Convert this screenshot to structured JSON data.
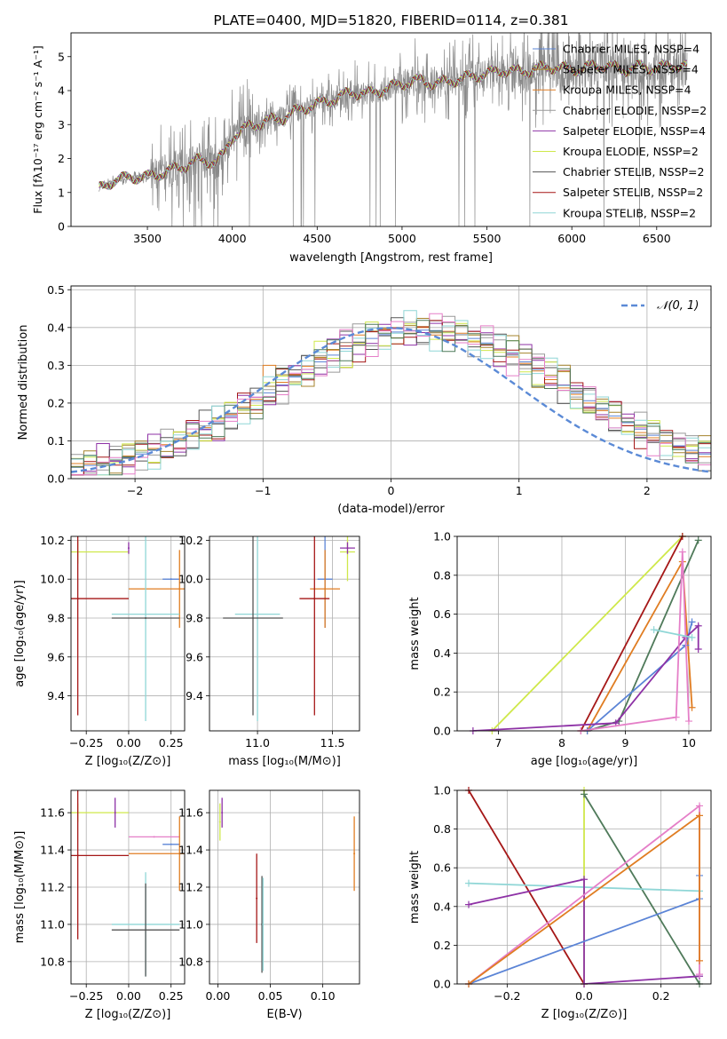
{
  "colors": {
    "Chabrier MILES": "#5b84d6",
    "Salpeter MILES": "#a5832c",
    "Kroupa MILES": "#e07d22",
    "Chabrier ELODIE": "#999999",
    "Salpeter ELODIE": "#8e32a6",
    "Kroupa ELODIE": "#cfe84a",
    "Chabrier STELIB": "#555555",
    "Salpeter STELIB": "#a51717",
    "Kroupa STELIB": "#8fd6d6",
    "pink": "#e57fc8",
    "dark_green": "#4f7a5a",
    "normal_curve": "#5b8ad6"
  },
  "chart_data": [
    {
      "type": "line",
      "panel": "spectrum",
      "title": "PLATE=0400, MJD=51820, FIBERID=0114, z=0.381",
      "xlabel": "wavelength [Angstrom, rest frame]",
      "ylabel": "Flux [fλ10⁻¹⁷ erg cm⁻² s⁻¹ A⁻¹]",
      "xlim": [
        3050,
        6820
      ],
      "ylim": [
        0,
        5.7
      ],
      "xticks": [
        "3500",
        "4000",
        "4500",
        "5000",
        "5500",
        "6000",
        "6500"
      ],
      "yticks": [
        "0",
        "1",
        "2",
        "3",
        "4",
        "5"
      ],
      "legend": [
        "Chabrier MILES, NSSP=4",
        "Salpeter MILES, NSSP=4",
        "Kroupa MILES, NSSP=4",
        "Chabrier ELODIE, NSSP=2",
        "Salpeter ELODIE, NSSP=4",
        "Kroupa ELODIE, NSSP=2",
        "Chabrier STELIB, NSSP=2",
        "Salpeter STELIB, NSSP=2",
        "Kroupa STELIB, NSSP=2"
      ],
      "legend_position": "right",
      "continuum_points": [
        [
          3215,
          1.1
        ],
        [
          3300,
          1.35
        ],
        [
          3400,
          1.45
        ],
        [
          3500,
          1.45
        ],
        [
          3600,
          1.6
        ],
        [
          3700,
          1.75
        ],
        [
          3800,
          1.95
        ],
        [
          3900,
          1.9
        ],
        [
          3950,
          2.1
        ],
        [
          4000,
          2.65
        ],
        [
          4100,
          2.95
        ],
        [
          4200,
          3.1
        ],
        [
          4300,
          3.2
        ],
        [
          4400,
          3.45
        ],
        [
          4500,
          3.6
        ],
        [
          4600,
          3.75
        ],
        [
          4700,
          3.95
        ],
        [
          4800,
          3.9
        ],
        [
          4900,
          4.05
        ],
        [
          5000,
          4.2
        ],
        [
          5100,
          4.3
        ],
        [
          5200,
          4.2
        ],
        [
          5300,
          4.3
        ],
        [
          5400,
          4.4
        ],
        [
          5500,
          4.5
        ],
        [
          5600,
          4.6
        ],
        [
          5700,
          4.55
        ],
        [
          5800,
          4.65
        ],
        [
          5900,
          4.7
        ],
        [
          6000,
          4.6
        ],
        [
          6100,
          4.7
        ],
        [
          6200,
          4.75
        ],
        [
          6300,
          4.6
        ],
        [
          6400,
          4.7
        ],
        [
          6500,
          4.65
        ],
        [
          6600,
          4.75
        ],
        [
          6680,
          4.7
        ]
      ]
    },
    {
      "type": "area",
      "panel": "residual histogram",
      "xlabel": "(data-model)/error",
      "ylabel": "Normed distribution",
      "xlim": [
        -2.5,
        2.5
      ],
      "ylim": [
        0,
        0.51
      ],
      "xticks": [
        "−2",
        "−1",
        "0",
        "1",
        "2"
      ],
      "yticks": [
        "0.0",
        "0.1",
        "0.2",
        "0.3",
        "0.4",
        "0.5"
      ],
      "bin_width": 0.1,
      "legend": [
        "𝒩(0, 1)"
      ],
      "legend_position": "upper right",
      "series": [
        {
          "name": "Chabrier MILES",
          "values": [
            0.03,
            0.035,
            0.041,
            0.048,
            0.056,
            0.065,
            0.075,
            0.087,
            0.1,
            0.115,
            0.131,
            0.148,
            0.166,
            0.186,
            0.206,
            0.227,
            0.248,
            0.269,
            0.289,
            0.309,
            0.327,
            0.344,
            0.359,
            0.371,
            0.381,
            0.388,
            0.392,
            0.393,
            0.392,
            0.388,
            0.381,
            0.371,
            0.359,
            0.344,
            0.327,
            0.309,
            0.289,
            0.269,
            0.248,
            0.227,
            0.206,
            0.186,
            0.166,
            0.148,
            0.131,
            0.115,
            0.1,
            0.087,
            0.075,
            0.065
          ]
        },
        {
          "name": "Kroupa MILES",
          "values": [
            0.04,
            0.039,
            0.043,
            0.05,
            0.06,
            0.07,
            0.08,
            0.09,
            0.104,
            0.12,
            0.135,
            0.152,
            0.17,
            0.19,
            0.21,
            0.3,
            0.255,
            0.276,
            0.297,
            0.32,
            0.34,
            0.36,
            0.38,
            0.39,
            0.395,
            0.4,
            0.385,
            0.4,
            0.38,
            0.39,
            0.385,
            0.362,
            0.355,
            0.34,
            0.322,
            0.305,
            0.285,
            0.262,
            0.24,
            0.223,
            0.2,
            0.18,
            0.16,
            0.14,
            0.122,
            0.108,
            0.095,
            0.082,
            0.07,
            0.058
          ]
        }
      ],
      "normal_curve": {
        "mean": 0,
        "sigma": 1
      }
    },
    {
      "type": "scatter",
      "panel": "age vs Z",
      "xlabel": "Z [log₁₀(Z/Z⊙)]",
      "ylabel": "age  [log₁₀(age/yr)]",
      "xlim": [
        -0.34,
        0.33
      ],
      "ylim": [
        9.22,
        10.22
      ],
      "xticks": [
        "−0.25",
        "0.00",
        "0.25"
      ],
      "yticks": [
        "9.4",
        "9.6",
        "9.8",
        "10.0",
        "10.2"
      ],
      "points": [
        {
          "series": "Kroupa ELODIE",
          "x": -0.3,
          "xerr": 0.3,
          "y": 10.14,
          "yerr": 0.06
        },
        {
          "series": "Salpeter ELODIE",
          "x": 0.0,
          "xerr": 0.0,
          "y": 10.16,
          "yerr": 0.03
        },
        {
          "series": "Chabrier MILES",
          "x": 0.25,
          "xerr": 0.05,
          "y": 10.0,
          "yerr": 0.0
        },
        {
          "series": "Kroupa MILES",
          "x": 0.3,
          "xerr": 0.3,
          "y": 9.95,
          "yerr": 0.2
        },
        {
          "series": "Salpeter STELIB",
          "x": -0.3,
          "xerr": 0.3,
          "y": 9.9,
          "yerr": 0.6
        },
        {
          "series": "Kroupa STELIB",
          "x": 0.1,
          "xerr": 0.2,
          "y": 9.82,
          "yerr": 0.55
        },
        {
          "series": "Chabrier STELIB",
          "x": 0.1,
          "xerr": 0.2,
          "y": 9.8,
          "yerr": 0.0
        }
      ]
    },
    {
      "type": "scatter",
      "panel": "age vs mass",
      "xlabel": "mass [log₁₀(M/M⊙)]",
      "ylim": [
        9.22,
        10.22
      ],
      "xlim": [
        10.68,
        11.68
      ],
      "xticks": [
        "11.0",
        "11.5"
      ],
      "yticks": [
        "9.4",
        "9.6",
        "9.8",
        "10.0",
        "10.2"
      ],
      "points": [
        {
          "series": "Kroupa ELODIE",
          "x": 11.6,
          "xerr": 0.05,
          "y": 10.14,
          "yerr": 0.15
        },
        {
          "series": "Salpeter ELODIE",
          "x": 11.6,
          "xerr": 0.05,
          "y": 10.16,
          "yerr": 0.03
        },
        {
          "series": "Chabrier MILES",
          "x": 11.45,
          "xerr": 0.05,
          "y": 10.0,
          "yerr": 0.25
        },
        {
          "series": "Kroupa MILES",
          "x": 11.45,
          "xerr": 0.1,
          "y": 9.95,
          "yerr": 0.2
        },
        {
          "series": "Salpeter STELIB",
          "x": 11.38,
          "xerr": 0.1,
          "y": 9.9,
          "yerr": 0.6
        },
        {
          "series": "Kroupa STELIB",
          "x": 11.0,
          "xerr": 0.15,
          "y": 9.82,
          "yerr": 0.55
        },
        {
          "series": "Chabrier STELIB",
          "x": 10.97,
          "xerr": 0.2,
          "y": 9.8,
          "yerr": 0.5
        }
      ]
    },
    {
      "type": "line",
      "panel": "mass weight vs age",
      "xlabel": "age  [log₁₀(age/yr)]",
      "ylabel": "mass weight",
      "xlim": [
        6.35,
        10.35
      ],
      "ylim": [
        0,
        1
      ],
      "xticks": [
        "7",
        "8",
        "9",
        "10"
      ],
      "yticks": [
        "0.0",
        "0.2",
        "0.4",
        "0.6",
        "0.8",
        "1.0"
      ],
      "series": [
        {
          "name": "Kroupa ELODIE",
          "x": [
            6.9,
            9.9
          ],
          "y": [
            0.0,
            1.0
          ]
        },
        {
          "name": "Salpeter STELIB",
          "x": [
            8.3,
            9.9
          ],
          "y": [
            0.0,
            1.0
          ]
        },
        {
          "name": "Kroupa MILES",
          "x": [
            8.4,
            9.9,
            10.05
          ],
          "y": [
            0.0,
            0.87,
            0.12
          ]
        },
        {
          "name": "dark_green",
          "x": [
            8.4,
            8.9,
            10.15
          ],
          "y": [
            0.0,
            0.05,
            0.98
          ]
        },
        {
          "name": "Chabrier MILES",
          "x": [
            8.4,
            9.95,
            10.05
          ],
          "y": [
            0.0,
            0.44,
            0.56
          ]
        },
        {
          "name": "Salpeter ELODIE",
          "x": [
            6.6,
            8.85,
            9.95,
            10.15,
            10.15
          ],
          "y": [
            0.0,
            0.04,
            0.48,
            0.54,
            0.42
          ]
        },
        {
          "name": "pink",
          "x": [
            8.3,
            9.8,
            9.9,
            10.0
          ],
          "y": [
            0.0,
            0.07,
            0.92,
            0.05
          ]
        },
        {
          "name": "Kroupa STELIB",
          "x": [
            9.45,
            10.05
          ],
          "y": [
            0.52,
            0.48
          ]
        }
      ]
    },
    {
      "type": "scatter",
      "panel": "mass vs Z",
      "xlabel": "Z [log₁₀(Z/Z⊙)]",
      "ylabel": "mass [log₁₀(M/M⊙)]",
      "xlim": [
        -0.34,
        0.33
      ],
      "ylim": [
        10.68,
        11.72
      ],
      "xticks": [
        "−0.25",
        "0.00",
        "0.25"
      ],
      "yticks": [
        "10.8",
        "11.0",
        "11.2",
        "11.4",
        "11.6"
      ],
      "points": [
        {
          "series": "Kroupa ELODIE",
          "x": -0.3,
          "xerr": 0.3,
          "y": 11.6,
          "yerr": 0.05
        },
        {
          "series": "Salpeter ELODIE",
          "x": -0.08,
          "xerr": 0.0,
          "y": 11.6,
          "yerr": 0.08
        },
        {
          "series": "pink",
          "x": 0.15,
          "xerr": 0.15,
          "y": 11.47,
          "yerr": 0.0
        },
        {
          "series": "Chabrier MILES",
          "x": 0.25,
          "xerr": 0.05,
          "y": 11.43,
          "yerr": 0.0
        },
        {
          "series": "Kroupa MILES",
          "x": 0.3,
          "xerr": 0.3,
          "y": 11.38,
          "yerr": 0.2
        },
        {
          "series": "Salpeter STELIB",
          "x": -0.3,
          "xerr": 0.3,
          "y": 11.37,
          "yerr": 0.45
        },
        {
          "series": "Kroupa STELIB",
          "x": 0.1,
          "xerr": 0.2,
          "y": 11.0,
          "yerr": 0.28
        },
        {
          "series": "Chabrier STELIB",
          "x": 0.1,
          "xerr": 0.2,
          "y": 10.97,
          "yerr": 0.25
        }
      ]
    },
    {
      "type": "scatter",
      "panel": "mass vs E(B-V)",
      "xlabel": "E(B-V)",
      "xlim": [
        -0.008,
        0.135
      ],
      "ylim": [
        10.68,
        11.72
      ],
      "xticks": [
        "0.00",
        "0.05",
        "0.10"
      ],
      "yticks": [
        "10.8",
        "11.0",
        "11.2",
        "11.4",
        "11.6"
      ],
      "points": [
        {
          "series": "Kroupa ELODIE",
          "x": 0.002,
          "y": 11.55,
          "yerr": 0.1
        },
        {
          "series": "Salpeter ELODIE",
          "x": 0.004,
          "y": 11.6,
          "yerr": 0.08
        },
        {
          "series": "Salpeter STELIB",
          "x": 0.037,
          "y": 11.14,
          "yerr": 0.24
        },
        {
          "series": "Chabrier STELIB",
          "x": 0.042,
          "y": 11.0,
          "yerr": 0.26
        },
        {
          "series": "Kroupa STELIB",
          "x": 0.043,
          "y": 11.0,
          "yerr": 0.25
        },
        {
          "series": "Kroupa MILES",
          "x": 0.13,
          "y": 11.38,
          "yerr": 0.2
        }
      ]
    },
    {
      "type": "line",
      "panel": "mass weight vs Z",
      "xlabel": "Z [log₁₀(Z/Z⊙)]",
      "ylabel": "mass weight",
      "xlim": [
        -0.33,
        0.33
      ],
      "ylim": [
        0,
        1
      ],
      "xticks": [
        "−0.2",
        "0.0",
        "0.2"
      ],
      "yticks": [
        "0.0",
        "0.2",
        "0.4",
        "0.6",
        "0.8",
        "1.0"
      ],
      "series": [
        {
          "name": "Salpeter STELIB",
          "x": [
            -0.3,
            0.0
          ],
          "y": [
            1.0,
            0.0
          ]
        },
        {
          "name": "Kroupa ELODIE",
          "x": [
            0.0,
            0.0
          ],
          "y": [
            0.0,
            1.0
          ]
        },
        {
          "name": "dark_green",
          "x": [
            0.0,
            0.3
          ],
          "y": [
            0.98,
            0.0
          ]
        },
        {
          "name": "Kroupa STELIB",
          "x": [
            -0.3,
            0.3
          ],
          "y": [
            0.52,
            0.48
          ]
        },
        {
          "name": "Salpeter ELODIE",
          "x": [
            -0.3,
            0.0,
            0.0,
            0.3
          ],
          "y": [
            0.41,
            0.54,
            0.0,
            0.04
          ]
        },
        {
          "name": "Chabrier MILES",
          "x": [
            -0.3,
            0.3,
            0.3
          ],
          "y": [
            0.0,
            0.44,
            0.56
          ]
        },
        {
          "name": "pink",
          "x": [
            -0.3,
            0.3,
            0.3
          ],
          "y": [
            0.0,
            0.92,
            0.05
          ]
        },
        {
          "name": "Kroupa MILES",
          "x": [
            -0.3,
            0.3,
            0.3
          ],
          "y": [
            0.0,
            0.87,
            0.12
          ]
        }
      ]
    }
  ]
}
